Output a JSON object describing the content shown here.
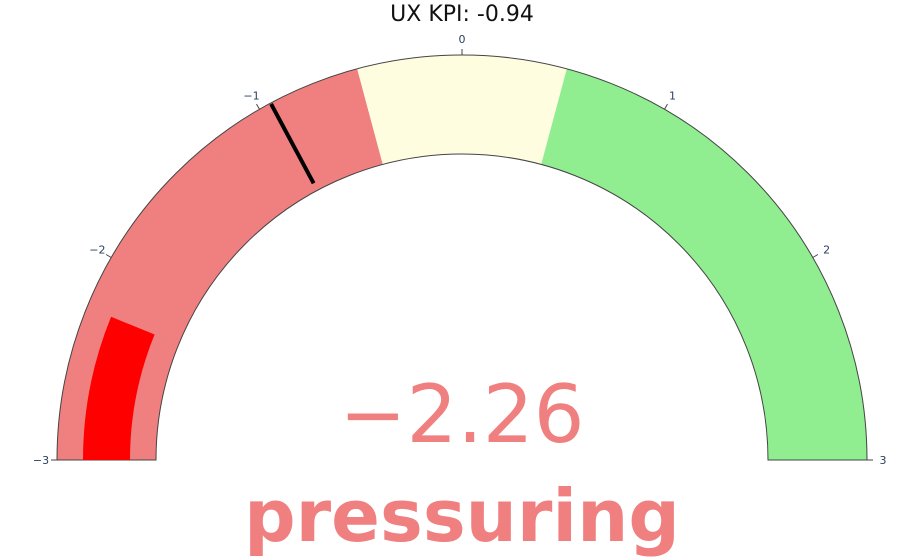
{
  "chart_data": {
    "type": "gauge",
    "title": "UX KPI: -0.94",
    "value": -2.26,
    "value_text": "−2.26",
    "status": "pressuring",
    "range": [
      -3,
      3
    ],
    "threshold": -0.94,
    "ticks": [
      -3,
      -2,
      -1,
      0,
      1,
      2,
      3
    ],
    "tick_labels": [
      "−3",
      "−2",
      "−1",
      "0",
      "1",
      "2",
      "3"
    ],
    "steps": [
      {
        "range": [
          -3,
          -0.5
        ],
        "color": "#f08080"
      },
      {
        "range": [
          -0.5,
          0.5
        ],
        "color": "#fffde0"
      },
      {
        "range": [
          0.5,
          3
        ],
        "color": "#90ee90"
      }
    ],
    "bar_color": "#ff0000",
    "threshold_color": "#000000",
    "value_color": "#f08080"
  }
}
